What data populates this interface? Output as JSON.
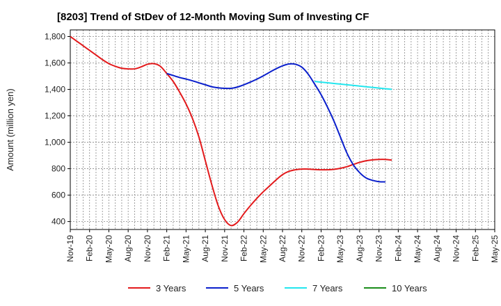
{
  "chart_data": {
    "type": "line",
    "title": "[8203]  Trend of StDev of 12-Month Moving Sum of Investing CF",
    "xlabel": "",
    "ylabel": "Amount (million yen)",
    "ylim": [
      340,
      1850
    ],
    "yticks": [
      400,
      600,
      800,
      1000,
      1200,
      1400,
      1600,
      1800
    ],
    "ytick_labels": [
      "400",
      "600",
      "800",
      "1,000",
      "1,200",
      "1,400",
      "1,600",
      "1,800"
    ],
    "x_ticks": [
      "Nov-19",
      "Feb-20",
      "May-20",
      "Aug-20",
      "Nov-20",
      "Feb-21",
      "May-21",
      "Aug-21",
      "Nov-21",
      "Feb-22",
      "May-22",
      "Aug-22",
      "Nov-22",
      "Feb-23",
      "May-23",
      "Aug-23",
      "Nov-23",
      "Feb-24",
      "May-24",
      "Aug-24",
      "Nov-24",
      "Feb-25",
      "May-25"
    ],
    "grid": true,
    "legend_position": "bottom",
    "series": [
      {
        "name": "3 Years",
        "color": "#e31a1c",
        "points": [
          [
            0,
            1800
          ],
          [
            1,
            1765
          ],
          [
            2,
            1730
          ],
          [
            3,
            1695
          ],
          [
            4,
            1660
          ],
          [
            5,
            1625
          ],
          [
            6,
            1595
          ],
          [
            7,
            1575
          ],
          [
            8,
            1560
          ],
          [
            9,
            1555
          ],
          [
            10,
            1555
          ],
          [
            11,
            1570
          ],
          [
            12,
            1590
          ],
          [
            13,
            1595
          ],
          [
            14,
            1575
          ],
          [
            15,
            1520
          ],
          [
            16,
            1460
          ],
          [
            17,
            1380
          ],
          [
            18,
            1290
          ],
          [
            19,
            1180
          ],
          [
            20,
            1040
          ],
          [
            21,
            860
          ],
          [
            22,
            680
          ],
          [
            23,
            520
          ],
          [
            24,
            415
          ],
          [
            25,
            370
          ],
          [
            26,
            395
          ],
          [
            27,
            460
          ],
          [
            28,
            520
          ],
          [
            29,
            575
          ],
          [
            30,
            625
          ],
          [
            31,
            670
          ],
          [
            32,
            715
          ],
          [
            33,
            755
          ],
          [
            34,
            780
          ],
          [
            35,
            792
          ],
          [
            36,
            797
          ],
          [
            37,
            797
          ],
          [
            38,
            794
          ],
          [
            39,
            792
          ],
          [
            40,
            792
          ],
          [
            41,
            795
          ],
          [
            42,
            803
          ],
          [
            43,
            815
          ],
          [
            44,
            832
          ],
          [
            45,
            848
          ],
          [
            46,
            860
          ],
          [
            47,
            867
          ],
          [
            48,
            870
          ],
          [
            49,
            870
          ],
          [
            50,
            865
          ]
        ]
      },
      {
        "name": "5 Years",
        "color": "#0a1fcc",
        "points": [
          [
            15,
            1520
          ],
          [
            16,
            1505
          ],
          [
            17,
            1490
          ],
          [
            18,
            1478
          ],
          [
            19,
            1465
          ],
          [
            20,
            1450
          ],
          [
            21,
            1435
          ],
          [
            22,
            1420
          ],
          [
            23,
            1412
          ],
          [
            24,
            1408
          ],
          [
            25,
            1408
          ],
          [
            26,
            1418
          ],
          [
            27,
            1435
          ],
          [
            28,
            1455
          ],
          [
            29,
            1477
          ],
          [
            30,
            1502
          ],
          [
            31,
            1530
          ],
          [
            32,
            1556
          ],
          [
            33,
            1578
          ],
          [
            34,
            1592
          ],
          [
            35,
            1590
          ],
          [
            36,
            1568
          ],
          [
            37,
            1515
          ],
          [
            38,
            1440
          ],
          [
            39,
            1360
          ],
          [
            40,
            1265
          ],
          [
            41,
            1160
          ],
          [
            42,
            1040
          ],
          [
            43,
            920
          ],
          [
            44,
            830
          ],
          [
            45,
            770
          ],
          [
            46,
            730
          ],
          [
            47,
            712
          ],
          [
            48,
            702
          ],
          [
            49,
            700
          ]
        ]
      },
      {
        "name": "7 Years",
        "color": "#22e6ee",
        "points": [
          [
            38,
            1460
          ],
          [
            39,
            1455
          ],
          [
            40,
            1450
          ],
          [
            41,
            1445
          ],
          [
            42,
            1440
          ],
          [
            43,
            1435
          ],
          [
            44,
            1430
          ],
          [
            45,
            1425
          ],
          [
            46,
            1420
          ],
          [
            47,
            1415
          ],
          [
            48,
            1410
          ],
          [
            49,
            1405
          ],
          [
            50,
            1400
          ]
        ]
      },
      {
        "name": "10 Years",
        "color": "#1a8c1a",
        "points": []
      }
    ]
  }
}
